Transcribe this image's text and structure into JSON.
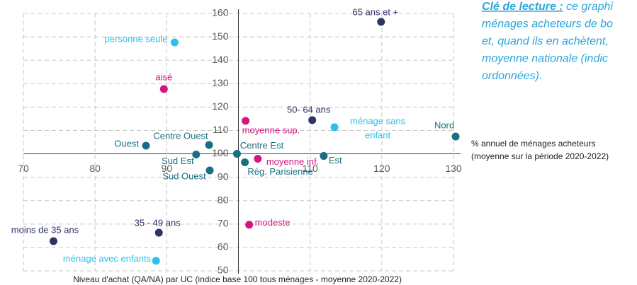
{
  "chart_data": {
    "type": "scatter",
    "xlabel": [
      "% annuel de ménages acheteurs",
      "(moyenne sur la période 2020-2022)"
    ],
    "ylabel": "Niveau d'achat (QA/NA) par UC (indice base 100 tous ménages - moyenne 2020-2022)",
    "note": {
      "lead": "Clé de lecture :",
      "lines": [
        " ce graphi",
        "ménages acheteurs de bo",
        "et, quand ils en achètent,",
        "moyenne nationale (indic",
        "ordonnées)."
      ]
    },
    "xlim": [
      70,
      130
    ],
    "xticks": [
      70,
      80,
      90,
      110,
      120,
      130
    ],
    "ylim": [
      50,
      160
    ],
    "yticks": [
      50,
      60,
      70,
      80,
      90,
      100,
      110,
      120,
      130,
      140,
      150,
      160
    ],
    "grid": true,
    "series": [
      {
        "color": "#2e3366",
        "labels": [
          "65 ans et +",
          "50- 64 ans",
          "35 - 49 ans",
          "moins de 35 ans"
        ],
        "x": [
          119.9,
          110.3,
          88.9,
          74.2
        ],
        "values": [
          156.4,
          114.4,
          66.3,
          62.7
        ]
      },
      {
        "color": "#2cc0ef",
        "labels": [
          "personne seule",
          [
            "ménage sans",
            "enfant"
          ],
          "ménage avec enfants"
        ],
        "x": [
          91.1,
          113.4,
          88.5
        ],
        "values": [
          147.6,
          111.4,
          54.3
        ]
      },
      {
        "color": "#d2167f",
        "labels": [
          "aisé",
          "moyenne sup.",
          "moyenne inf.",
          "modeste"
        ],
        "x": [
          89.6,
          101.0,
          102.7,
          101.5
        ],
        "values": [
          127.7,
          114.1,
          97.9,
          69.7
        ]
      },
      {
        "color": "#1a6e82",
        "labels": [
          "Nord",
          "Ouest",
          "Centre Ouest",
          "Sud Est",
          "Sud Ouest",
          "Centre Est",
          "Est",
          "Rég. Parisienne"
        ],
        "x": [
          130.3,
          87.1,
          95.9,
          94.1,
          96.0,
          99.8,
          111.9,
          100.9
        ],
        "values": [
          107.4,
          103.5,
          103.8,
          99.7,
          92.9,
          100.0,
          99.1,
          96.4
        ]
      }
    ]
  }
}
